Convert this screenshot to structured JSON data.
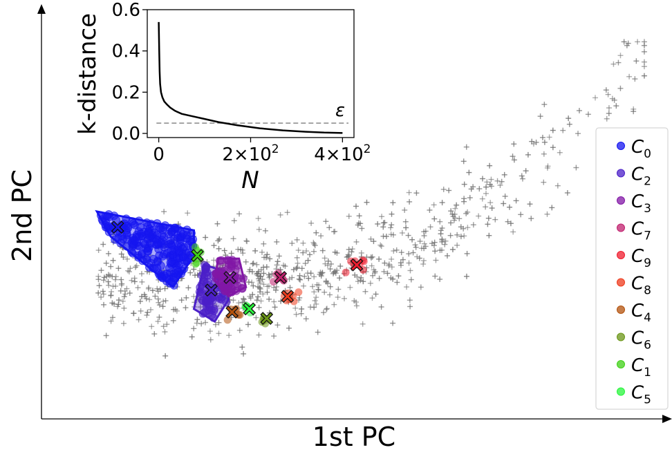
{
  "chart_data": [
    {
      "type": "scatter",
      "title": "",
      "xlabel": "1st PC",
      "ylabel": "2nd PC",
      "axis_ticks": "none",
      "axis_arrows": true,
      "legend_position": "right",
      "legend": [
        {
          "label": "C",
          "sub": "0",
          "color": "#1515f0"
        },
        {
          "label": "C",
          "sub": "2",
          "color": "#4b1fc8"
        },
        {
          "label": "C",
          "sub": "3",
          "color": "#8217a6"
        },
        {
          "label": "C",
          "sub": "7",
          "color": "#c0206e"
        },
        {
          "label": "C",
          "sub": "9",
          "color": "#ef1c2e"
        },
        {
          "label": "C",
          "sub": "8",
          "color": "#ee3a1c"
        },
        {
          "label": "C",
          "sub": "4",
          "color": "#b3520c"
        },
        {
          "label": "C",
          "sub": "6",
          "color": "#6b9617"
        },
        {
          "label": "C",
          "sub": "1",
          "color": "#3fd016"
        },
        {
          "label": "C",
          "sub": "5",
          "color": "#27f53b"
        }
      ],
      "noise_marker": "+",
      "noise_color": "#6f6f6f",
      "series": [
        {
          "name": "C0",
          "color": "#1515f0",
          "hull": [
            [
              0.8,
              3.3
            ],
            [
              2.2,
              3.0
            ],
            [
              2.2,
              2.6
            ],
            [
              1.9,
              2.1
            ],
            [
              1.0,
              2.9
            ]
          ],
          "center": [
            1.1,
            3.05
          ],
          "count": 230
        },
        {
          "name": "C2",
          "color": "#4b1fc8",
          "hull": [
            [
              2.35,
              2.45
            ],
            [
              2.65,
              2.35
            ],
            [
              2.7,
              1.9
            ],
            [
              2.5,
              1.55
            ],
            [
              2.2,
              1.75
            ]
          ],
          "center": [
            2.45,
            2.05
          ],
          "count": 70
        },
        {
          "name": "C3",
          "color": "#8217a6",
          "hull": [
            [
              2.55,
              2.55
            ],
            [
              2.85,
              2.55
            ],
            [
              2.95,
              2.1
            ],
            [
              2.7,
              1.95
            ],
            [
              2.5,
              2.2
            ]
          ],
          "center": [
            2.72,
            2.25
          ],
          "count": 55
        },
        {
          "name": "C7",
          "color": "#c0206e",
          "hull": [],
          "center": [
            3.45,
            2.25
          ],
          "count": 8
        },
        {
          "name": "C9",
          "color": "#ef1c2e",
          "hull": [],
          "center": [
            4.55,
            2.45
          ],
          "count": 8
        },
        {
          "name": "C8",
          "color": "#ee3a1c",
          "hull": [],
          "center": [
            3.55,
            1.95
          ],
          "count": 8
        },
        {
          "name": "C4",
          "color": "#b3520c",
          "hull": [],
          "center": [
            2.75,
            1.7
          ],
          "count": 6
        },
        {
          "name": "C6",
          "color": "#6b9617",
          "hull": [],
          "center": [
            3.25,
            1.6
          ],
          "count": 6
        },
        {
          "name": "C1",
          "color": "#3fd016",
          "hull": [],
          "center": [
            2.25,
            2.6
          ],
          "count": 6
        },
        {
          "name": "C5",
          "color": "#27f53b",
          "hull": [],
          "center": [
            3.0,
            1.75
          ],
          "count": 6
        }
      ],
      "xlim": [
        0,
        9
      ],
      "ylim": [
        0,
        6.5
      ]
    },
    {
      "type": "line",
      "title": "",
      "xlabel": "N",
      "ylabel": "k-distance",
      "xlim": [
        -25,
        425
      ],
      "ylim": [
        -0.02,
        0.6
      ],
      "xticks": [
        {
          "v": 0,
          "label": "0"
        },
        {
          "v": 200,
          "label": "2×10"
        },
        {
          "v": 400,
          "label": "4×10"
        }
      ],
      "xtick_exp": "2",
      "yticks": [
        {
          "v": 0.0,
          "label": "0.0"
        },
        {
          "v": 0.2,
          "label": "0.2"
        },
        {
          "v": 0.4,
          "label": "0.4"
        },
        {
          "v": 0.6,
          "label": "0.6"
        }
      ],
      "x": [
        0,
        1,
        2,
        3,
        5,
        8,
        12,
        18,
        25,
        35,
        50,
        70,
        100,
        130,
        170,
        220,
        270,
        320,
        360,
        400
      ],
      "y": [
        0.54,
        0.4,
        0.3,
        0.24,
        0.2,
        0.175,
        0.155,
        0.14,
        0.125,
        0.11,
        0.095,
        0.085,
        0.07,
        0.055,
        0.04,
        0.025,
        0.015,
        0.008,
        0.004,
        0.002
      ],
      "epsilon": 0.05,
      "epsilon_label": "ε"
    }
  ]
}
